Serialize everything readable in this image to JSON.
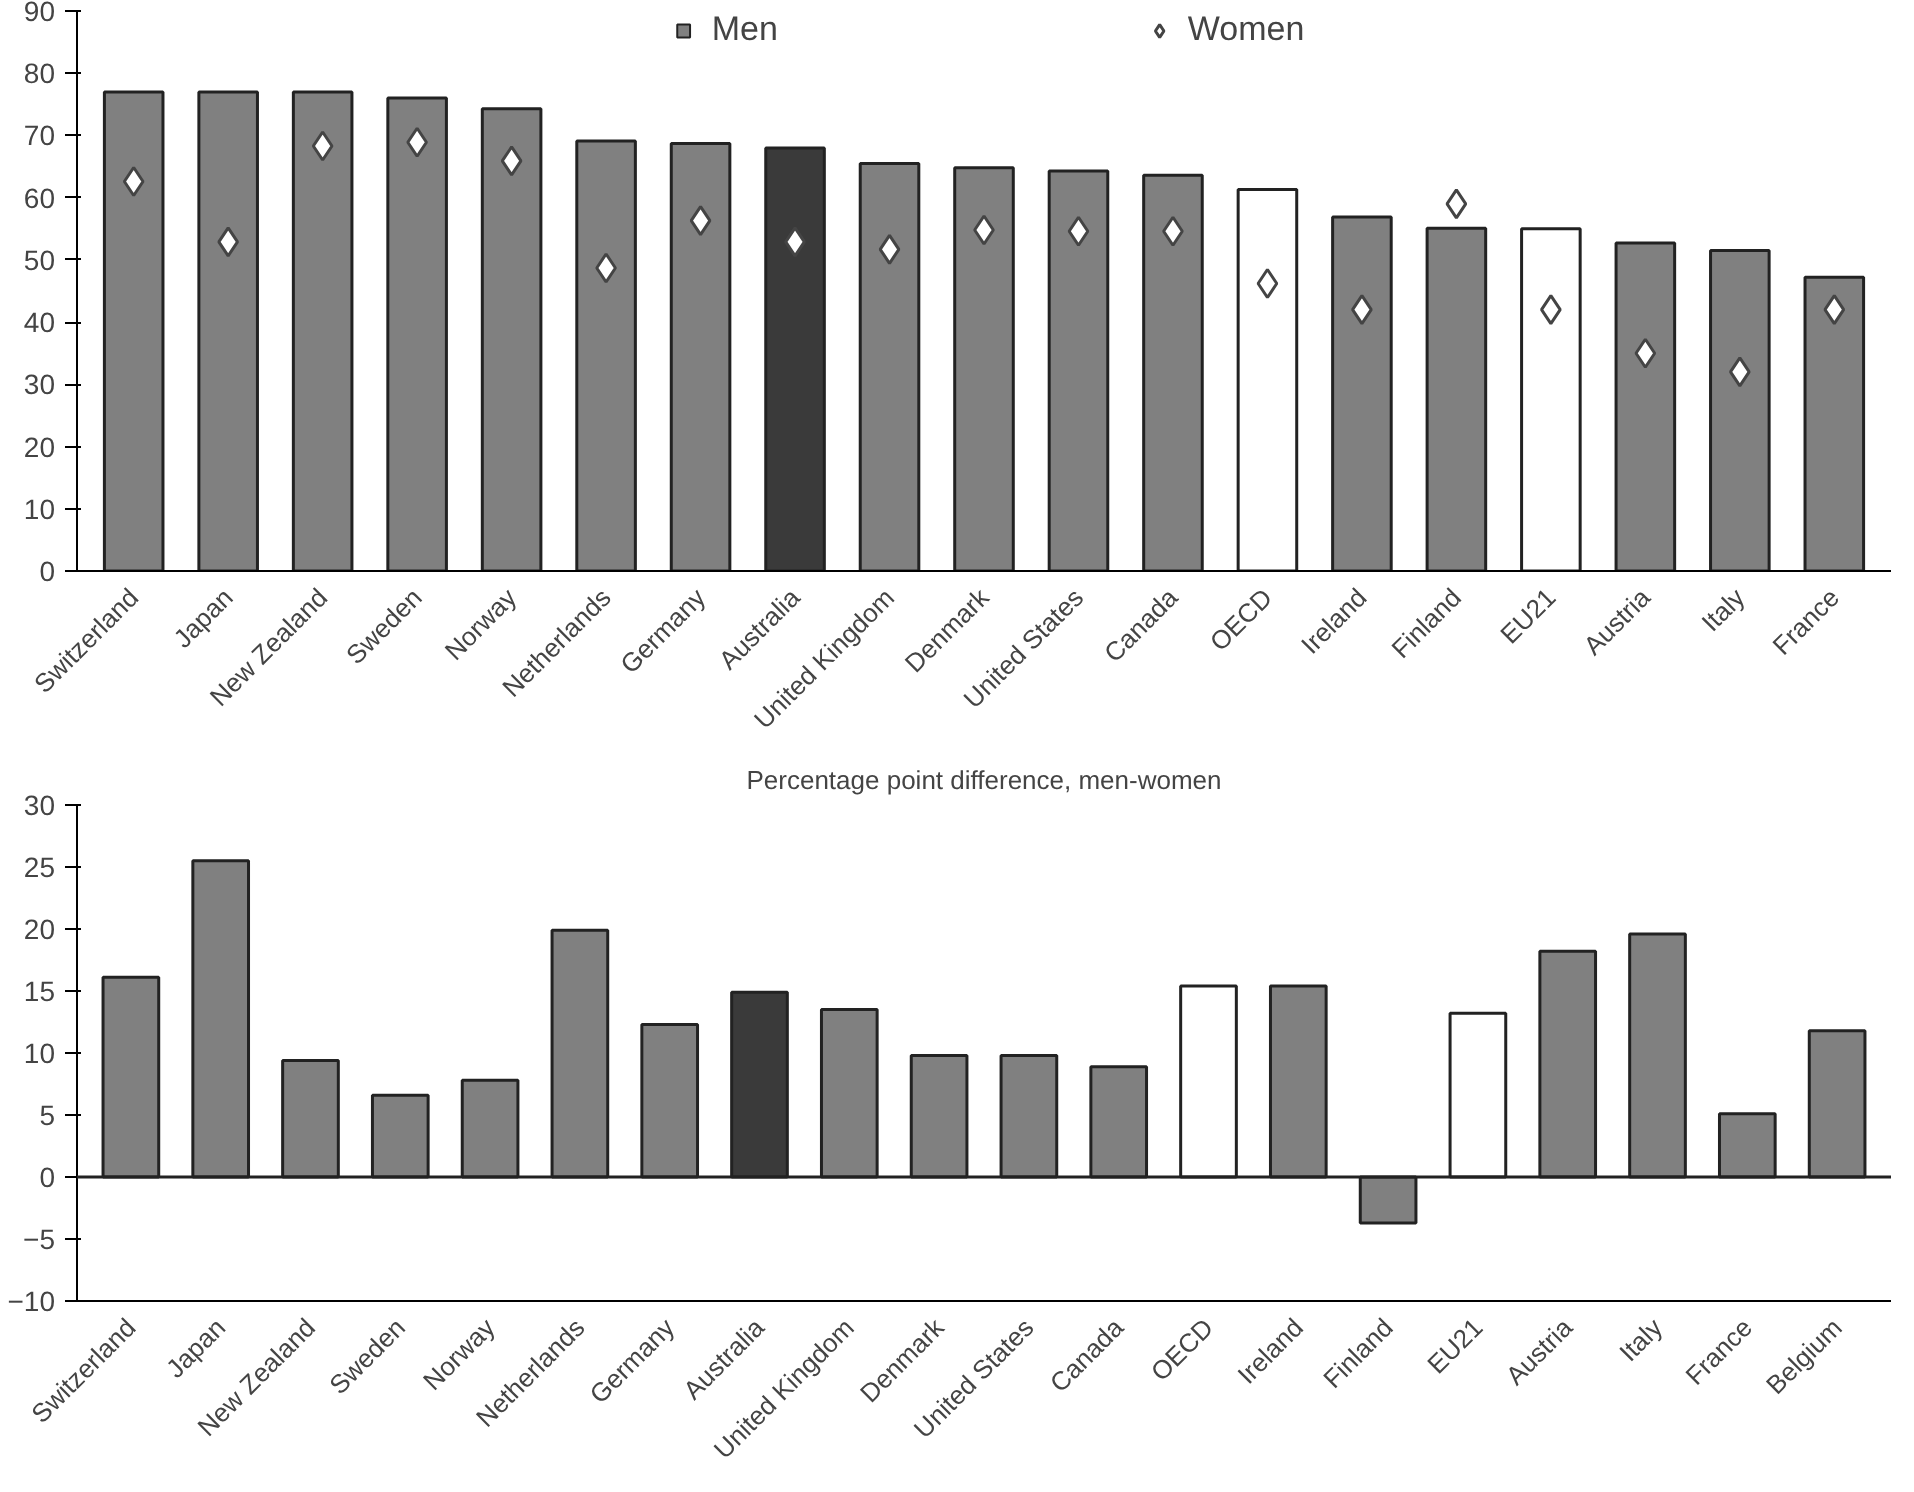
{
  "chart_data": [
    {
      "type": "bar",
      "categories": [
        "Switzerland",
        "Japan",
        "New Zealand",
        "Sweden",
        "Norway",
        "Netherlands",
        "Germany",
        "Australia",
        "United Kingdom",
        "Denmark",
        "United States",
        "Canada",
        "OECD",
        "Ireland",
        "Finland",
        "EU21",
        "Austria",
        "Italy",
        "France"
      ],
      "ylim": [
        0,
        90
      ],
      "yticks": [
        0,
        10,
        20,
        30,
        40,
        50,
        60,
        70,
        80,
        90
      ],
      "grid": false,
      "legend": "top",
      "series": [
        {
          "name": "Men",
          "type": "bar",
          "color": "#808080",
          "colors": [
            "#808080",
            "#808080",
            "#808080",
            "#808080",
            "#808080",
            "#808080",
            "#808080",
            "#3a3a3a",
            "#808080",
            "#808080",
            "#808080",
            "#808080",
            "#ffffff",
            "#808080",
            "#808080",
            "#ffffff",
            "#808080",
            "#808080",
            "#808080"
          ],
          "values": [
            77,
            77,
            77,
            76,
            74.3,
            69.1,
            68.7,
            68,
            65.5,
            64.8,
            64.3,
            63.6,
            61.3,
            56.9,
            55.1,
            55,
            52.7,
            51.5,
            47.2
          ]
        },
        {
          "name": "Women",
          "type": "scatter",
          "marker": "diamond",
          "color": "#ffffff",
          "values": [
            62.6,
            52.9,
            68.3,
            68.9,
            65.9,
            48.7,
            56.3,
            52.9,
            51.7,
            54.8,
            54.6,
            54.6,
            46.2,
            42,
            59,
            42,
            35,
            32,
            42
          ]
        }
      ]
    },
    {
      "type": "bar",
      "title": "Percentage point difference, men-women",
      "categories": [
        "Switzerland",
        "Japan",
        "New Zealand",
        "Sweden",
        "Norway",
        "Netherlands",
        "Germany",
        "Australia",
        "United Kingdom",
        "Denmark",
        "United States",
        "Canada",
        "OECD",
        "Ireland",
        "Finland",
        "EU21",
        "Austria",
        "Italy",
        "France",
        "Belgium"
      ],
      "ylim": [
        -10,
        30
      ],
      "yticks": [
        -10,
        -5,
        0,
        5,
        10,
        15,
        20,
        25,
        30
      ],
      "grid": false,
      "ref_lines": [
        {
          "axis": "y",
          "value": 0,
          "color": "#222222"
        }
      ],
      "colors": [
        "#808080",
        "#808080",
        "#808080",
        "#808080",
        "#808080",
        "#808080",
        "#808080",
        "#3a3a3a",
        "#808080",
        "#808080",
        "#808080",
        "#808080",
        "#ffffff",
        "#808080",
        "#808080",
        "#ffffff",
        "#808080",
        "#808080",
        "#808080",
        "#808080"
      ],
      "values": [
        16.1,
        25.5,
        9.4,
        6.6,
        7.8,
        19.9,
        12.3,
        14.9,
        13.5,
        9.8,
        9.8,
        8.9,
        15.4,
        15.4,
        -3.7,
        13.2,
        18.2,
        19.6,
        5.1,
        11.8
      ]
    }
  ]
}
